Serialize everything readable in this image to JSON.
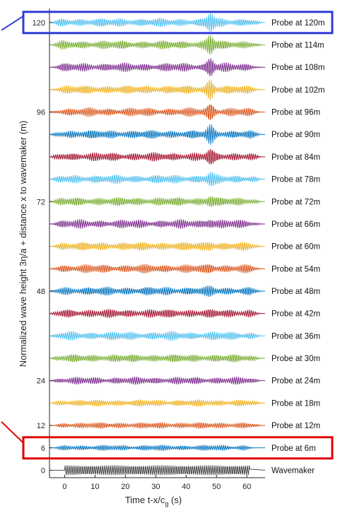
{
  "chart_data": {
    "type": "line",
    "title": "",
    "xlabel_main": "Time t-x/c",
    "xlabel_sub": "g",
    "xlabel_unit": " (s)",
    "ylabel": "Normalized wave height 3η/a + distance x to wavemaker (m)",
    "xlim": [
      -5,
      66
    ],
    "ylim": [
      -2,
      123
    ],
    "xticks": [
      0,
      10,
      20,
      30,
      40,
      50,
      60
    ],
    "xtick_labels": [
      "0",
      "10",
      "20",
      "30",
      "40",
      "50",
      "60"
    ],
    "yticks": [
      0,
      6,
      12,
      24,
      48,
      72,
      96,
      120
    ],
    "ytick_labels": [
      "0",
      "6",
      "12",
      "24",
      "48",
      "72",
      "96",
      "120"
    ],
    "series": [
      {
        "name": "Wavemaker",
        "offset": 0,
        "color": "#3a3a3a",
        "t_start": 0,
        "t_end": 61,
        "focus_time": null,
        "focus_amp": 0
      },
      {
        "name": "Probe at 6m",
        "offset": 6,
        "color": "#0072BD",
        "t_start": -4,
        "t_end": 63,
        "focus_time": null,
        "focus_amp": 0
      },
      {
        "name": "Probe at 12m",
        "offset": 12,
        "color": "#D95319",
        "t_start": -4,
        "t_end": 65,
        "focus_time": null,
        "focus_amp": 0
      },
      {
        "name": "Probe at 18m",
        "offset": 18,
        "color": "#EDB120",
        "t_start": -5,
        "t_end": 65,
        "focus_time": null,
        "focus_amp": 0
      },
      {
        "name": "Probe at 24m",
        "offset": 24,
        "color": "#7E2F8E",
        "t_start": -5,
        "t_end": 65,
        "focus_time": null,
        "focus_amp": 0
      },
      {
        "name": "Probe at 30m",
        "offset": 30,
        "color": "#77AC30",
        "t_start": -5,
        "t_end": 65,
        "focus_time": null,
        "focus_amp": 0
      },
      {
        "name": "Probe at 36m",
        "offset": 36,
        "color": "#4DBEEE",
        "t_start": -5,
        "t_end": 65,
        "focus_time": null,
        "focus_amp": 0
      },
      {
        "name": "Probe at 42m",
        "offset": 42,
        "color": "#A2142F",
        "t_start": -5,
        "t_end": 65,
        "focus_time": null,
        "focus_amp": 0
      },
      {
        "name": "Probe at 48m",
        "offset": 48,
        "color": "#0072BD",
        "t_start": -5,
        "t_end": 65,
        "focus_time": 48,
        "focus_amp": 0.25
      },
      {
        "name": "Probe at 54m",
        "offset": 54,
        "color": "#D95319",
        "t_start": -5,
        "t_end": 65,
        "focus_time": 48,
        "focus_amp": 0.35
      },
      {
        "name": "Probe at 60m",
        "offset": 60,
        "color": "#EDB120",
        "t_start": -5,
        "t_end": 65,
        "focus_time": 48,
        "focus_amp": 0.45
      },
      {
        "name": "Probe at 66m",
        "offset": 66,
        "color": "#7E2F8E",
        "t_start": -5,
        "t_end": 65,
        "focus_time": 48,
        "focus_amp": 0.55
      },
      {
        "name": "Probe at 72m",
        "offset": 72,
        "color": "#77AC30",
        "t_start": -5,
        "t_end": 65,
        "focus_time": 48,
        "focus_amp": 0.65
      },
      {
        "name": "Probe at 78m",
        "offset": 78,
        "color": "#4DBEEE",
        "t_start": -5,
        "t_end": 65,
        "focus_time": 48,
        "focus_amp": 0.8
      },
      {
        "name": "Probe at 84m",
        "offset": 84,
        "color": "#A2142F",
        "t_start": -5,
        "t_end": 65,
        "focus_time": 48,
        "focus_amp": 1.0
      },
      {
        "name": "Probe at 90m",
        "offset": 90,
        "color": "#0072BD",
        "t_start": -5,
        "t_end": 65,
        "focus_time": 48,
        "focus_amp": 1.2
      },
      {
        "name": "Probe at 96m",
        "offset": 96,
        "color": "#D95319",
        "t_start": -5,
        "t_end": 65,
        "focus_time": 48,
        "focus_amp": 1.3
      },
      {
        "name": "Probe at 102m",
        "offset": 102,
        "color": "#EDB120",
        "t_start": -5,
        "t_end": 65,
        "focus_time": 48,
        "focus_amp": 1.4
      },
      {
        "name": "Probe at 108m",
        "offset": 108,
        "color": "#7E2F8E",
        "t_start": -5,
        "t_end": 65,
        "focus_time": 48,
        "focus_amp": 1.5
      },
      {
        "name": "Probe at 114m",
        "offset": 114,
        "color": "#77AC30",
        "t_start": -5,
        "t_end": 65,
        "focus_time": 48,
        "focus_amp": 1.5
      },
      {
        "name": "Probe at 120m",
        "offset": 120,
        "color": "#4DBEEE",
        "t_start": -5,
        "t_end": 65,
        "focus_time": 48,
        "focus_amp": 1.4
      }
    ],
    "highlights": [
      {
        "target": "Probe at 120m",
        "color": "#2f3bd6"
      },
      {
        "target": "Probe at 6m",
        "color": "#e00000"
      }
    ],
    "grid": false,
    "legend": "inline-right"
  }
}
